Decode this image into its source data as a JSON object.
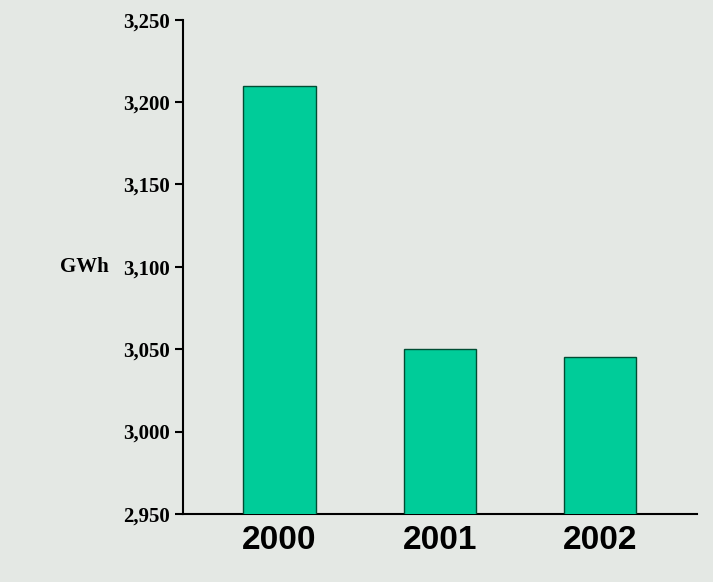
{
  "chart_data": {
    "type": "bar",
    "categories": [
      "2000",
      "2001",
      "2002"
    ],
    "values": [
      3210,
      3050,
      3045
    ],
    "color": "#00cc99",
    "y_label": "GWh",
    "ylim": [
      2950,
      3250
    ],
    "yticks": [
      {
        "value": 2950,
        "label": "2,950"
      },
      {
        "value": 3000,
        "label": "3,000"
      },
      {
        "value": 3050,
        "label": "3,050"
      },
      {
        "value": 3100,
        "label": "3,100"
      },
      {
        "value": 3150,
        "label": "3,150"
      },
      {
        "value": 3200,
        "label": "3,200"
      },
      {
        "value": 3250,
        "label": "3,250"
      }
    ],
    "grid": false
  }
}
